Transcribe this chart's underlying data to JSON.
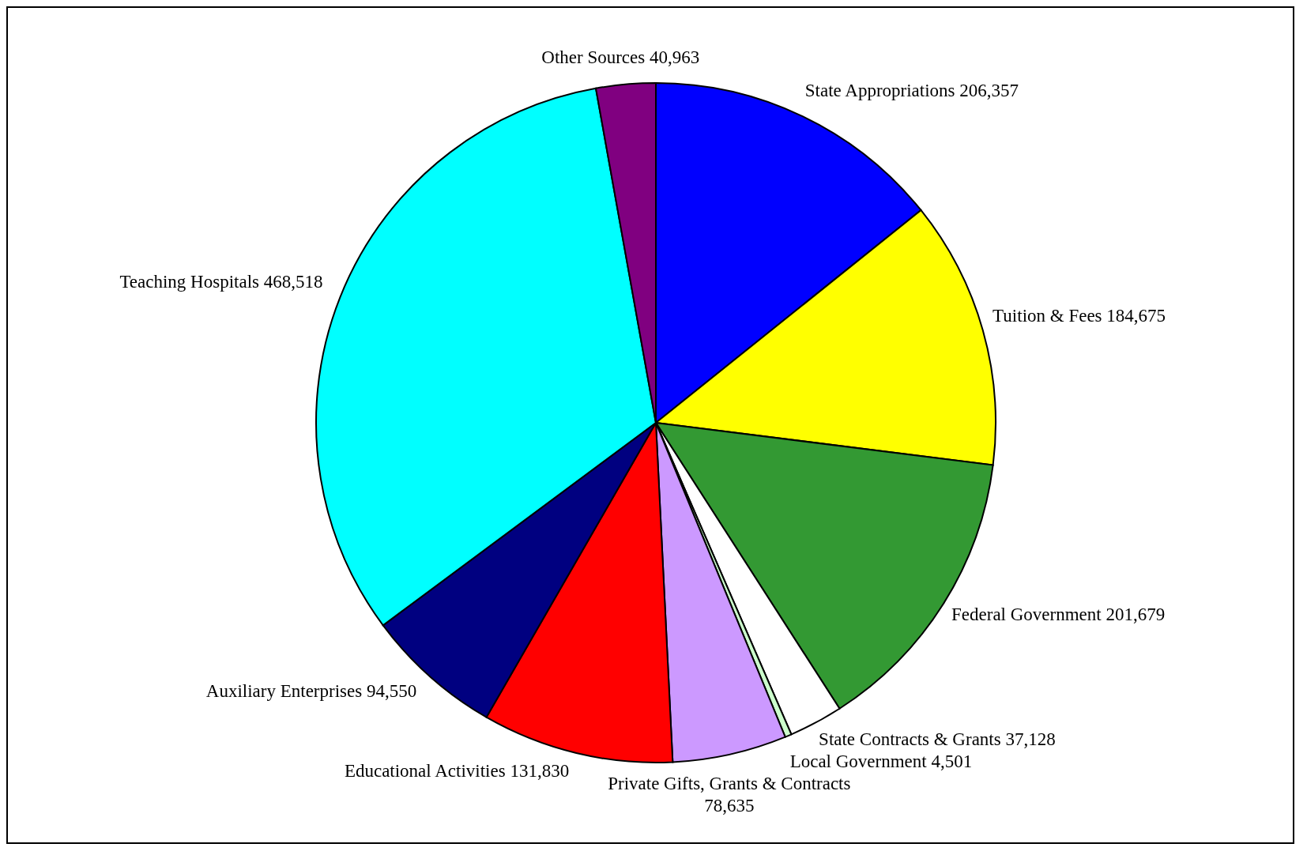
{
  "chart_data": {
    "type": "pie",
    "value_labels": [
      "206,357",
      "184,675",
      "201,679",
      "37,128",
      "4,501",
      "78,635",
      "131,830",
      "94,550",
      "468,518",
      "40,963"
    ],
    "categories": [
      "State Appropriations",
      "Tuition & Fees",
      "Federal Government",
      "State Contracts & Grants",
      "Local Government",
      "Private Gifts, Grants & Contracts",
      "Educational Activities",
      "Auxiliary Enterprises",
      "Teaching Hospitals",
      "Other Sources"
    ],
    "values": [
      206357,
      184675,
      201679,
      37128,
      4501,
      78635,
      131830,
      94550,
      468518,
      40963
    ],
    "colors": [
      "#0000ff",
      "#ffff00",
      "#339933",
      "#ffffff",
      "#ccffcc",
      "#cc99ff",
      "#ff0000",
      "#000080",
      "#00ffff",
      "#800080"
    ]
  }
}
